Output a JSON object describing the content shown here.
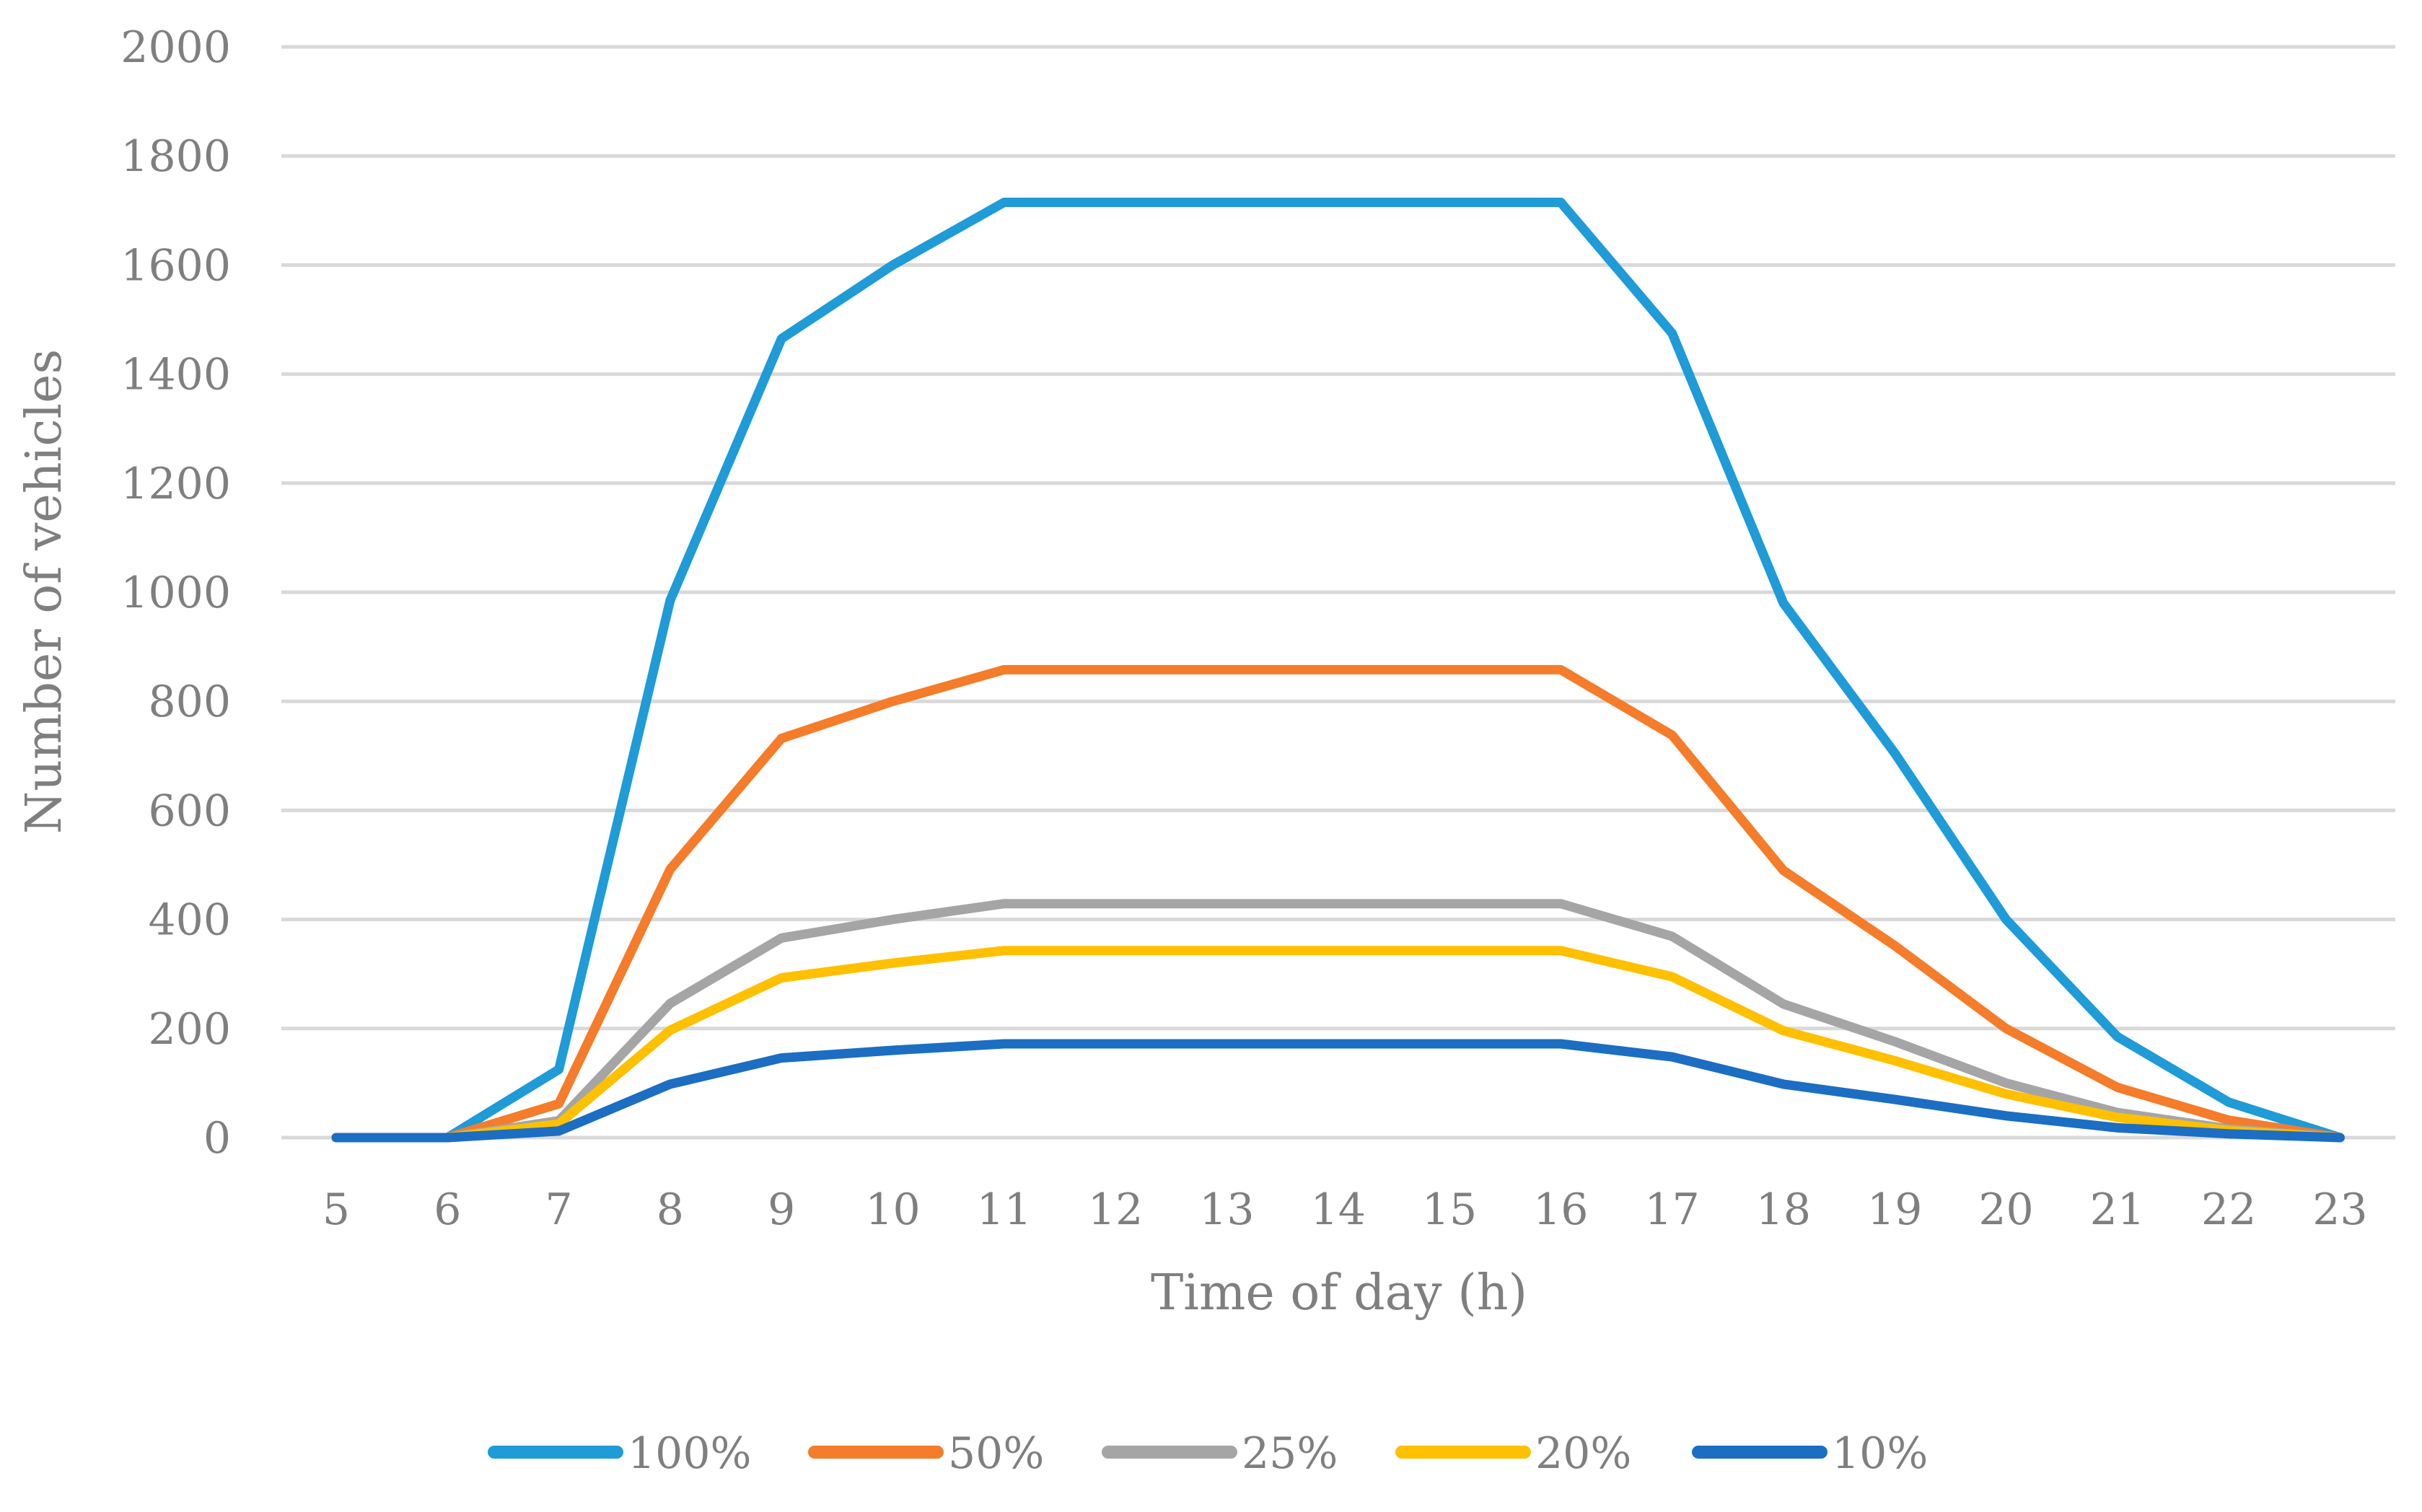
{
  "chart_data": {
    "type": "line",
    "title": "",
    "xlabel": "Time of day (h)",
    "ylabel": "Number of vehicles",
    "ylim": [
      0,
      2000
    ],
    "yticks": [
      "0",
      "200",
      "400",
      "600",
      "800",
      "1000",
      "1200",
      "1400",
      "1600",
      "1800",
      "2000"
    ],
    "categories": [
      "5",
      "6",
      "7",
      "8",
      "9",
      "10",
      "11",
      "12",
      "13",
      "14",
      "15",
      "16",
      "17",
      "18",
      "19",
      "20",
      "21",
      "22",
      "23"
    ],
    "grid": true,
    "legend_position": "bottom",
    "series": [
      {
        "name": "100%",
        "color": "#1f9bd7",
        "values": [
          0,
          0,
          125,
          985,
          1465,
          1600,
          1715,
          1715,
          1715,
          1715,
          1715,
          1715,
          1475,
          980,
          705,
          400,
          185,
          65,
          0
        ]
      },
      {
        "name": "50%",
        "color": "#f47c2a",
        "values": [
          0,
          0,
          62,
          492,
          732,
          800,
          858,
          858,
          858,
          858,
          858,
          858,
          738,
          490,
          352,
          200,
          92,
          32,
          0
        ]
      },
      {
        "name": "25%",
        "color": "#a5a5a5",
        "values": [
          0,
          0,
          31,
          246,
          366,
          400,
          429,
          429,
          429,
          429,
          429,
          429,
          369,
          245,
          176,
          100,
          46,
          16,
          0
        ]
      },
      {
        "name": "20%",
        "color": "#ffc000",
        "values": [
          0,
          0,
          25,
          197,
          293,
          320,
          343,
          343,
          343,
          343,
          343,
          343,
          295,
          196,
          141,
          80,
          37,
          13,
          0
        ]
      },
      {
        "name": "10%",
        "color": "#1b6ec2",
        "values": [
          0,
          0,
          12,
          98,
          146,
          160,
          172,
          172,
          172,
          172,
          172,
          172,
          148,
          98,
          70,
          40,
          18,
          7,
          0
        ]
      }
    ]
  }
}
